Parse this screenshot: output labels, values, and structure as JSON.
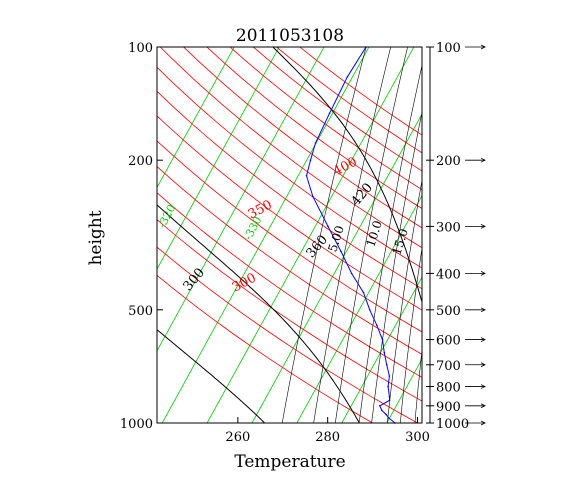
{
  "chart_data": {
    "type": "line",
    "title": "2011053108",
    "xlabel": "Temperature",
    "ylabel": "height",
    "x_range": [
      242,
      301
    ],
    "p_range": [
      1000,
      100
    ],
    "y_scale": "log-pressure",
    "x_ticks": [
      260,
      280,
      300
    ],
    "p_ticks": [
      100,
      200,
      500,
      1000
    ],
    "right_p_ticks": [
      100,
      200,
      300,
      400,
      500,
      600,
      700,
      800,
      900,
      1000
    ],
    "isotherm_color": "#00cc00",
    "dry_adiabat_color": "#ff0000",
    "moist_adiabat_color": "#000000",
    "mixing_ratio_color": "#000000",
    "profile_color": "#0000ff",
    "isotherm_labels": [
      "-320",
      "-330"
    ],
    "isotherms_C": [
      -60,
      -50,
      -40,
      -30,
      -20,
      -10,
      0,
      10,
      20,
      30,
      40,
      50,
      60,
      70,
      80
    ],
    "dry_adiabats_K": [
      290,
      300,
      310,
      320,
      330,
      340,
      350,
      360,
      370,
      380,
      390,
      400,
      410,
      420,
      430,
      440
    ],
    "dry_adiabat_labels": [
      {
        "theta": 300,
        "text": "300"
      },
      {
        "theta": 350,
        "text": "350"
      },
      {
        "theta": 400,
        "text": "400"
      }
    ],
    "moist_adiabats_K": [
      300,
      320,
      340,
      360,
      380,
      400,
      420,
      440,
      460
    ],
    "moist_adiabat_labels": [
      {
        "theta": 300,
        "text": "300"
      },
      {
        "theta": 360,
        "text": "360"
      },
      {
        "theta": 420,
        "text": "420"
      }
    ],
    "mixing_ratio_labels": [
      "5.00",
      "10.0",
      "15.0"
    ],
    "profile": [
      {
        "p": 1000,
        "t": 295.0
      },
      {
        "p": 970,
        "t": 293.0
      },
      {
        "p": 950,
        "t": 292.0
      },
      {
        "p": 925,
        "t": 290.5
      },
      {
        "p": 900,
        "t": 289.5
      },
      {
        "p": 870,
        "t": 291.0
      },
      {
        "p": 850,
        "t": 290.5
      },
      {
        "p": 800,
        "t": 289.0
      },
      {
        "p": 750,
        "t": 288.0
      },
      {
        "p": 700,
        "t": 286.0
      },
      {
        "p": 650,
        "t": 284.0
      },
      {
        "p": 600,
        "t": 282.0
      },
      {
        "p": 550,
        "t": 279.0
      },
      {
        "p": 500,
        "t": 275.5
      },
      {
        "p": 450,
        "t": 272.0
      },
      {
        "p": 400,
        "t": 267.0
      },
      {
        "p": 350,
        "t": 262.0
      },
      {
        "p": 300,
        "t": 256.0
      },
      {
        "p": 250,
        "t": 249.0
      },
      {
        "p": 220,
        "t": 245.0
      },
      {
        "p": 200,
        "t": 244.0
      },
      {
        "p": 180,
        "t": 243.0
      },
      {
        "p": 150,
        "t": 242.5
      },
      {
        "p": 120,
        "t": 242.0
      },
      {
        "p": 100,
        "t": 242.5
      }
    ]
  }
}
